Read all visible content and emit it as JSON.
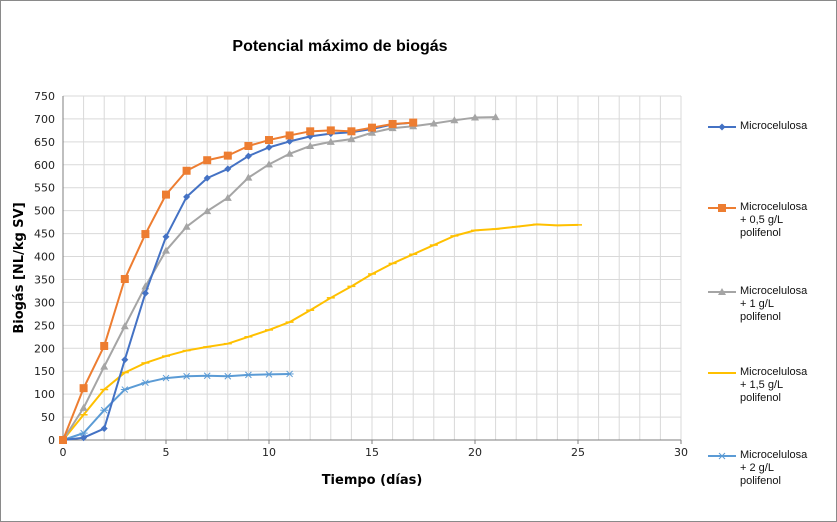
{
  "chart_data": {
    "type": "line",
    "title": "Potencial máximo de biogás",
    "xlabel": "Tiempo (días)",
    "ylabel": "Biogás [NL/kg SV]",
    "xlim": [
      0,
      30
    ],
    "ylim": [
      0,
      750
    ],
    "x_ticks": [
      0,
      5,
      10,
      15,
      20,
      25,
      30
    ],
    "y_ticks": [
      0,
      50,
      100,
      150,
      200,
      250,
      300,
      350,
      400,
      450,
      500,
      550,
      600,
      650,
      700,
      750
    ],
    "grid": true,
    "legend_position": "right",
    "series": [
      {
        "name": "Microcelulosa",
        "color": "#4472C4",
        "marker": "diamond",
        "x": [
          0,
          1,
          2,
          3,
          4,
          5,
          6,
          7,
          8,
          9,
          10,
          11,
          12,
          13,
          14,
          15,
          16,
          17
        ],
        "values": [
          0,
          5,
          25,
          175,
          320,
          443,
          530,
          571,
          591,
          619,
          638,
          651,
          662,
          668,
          671,
          678,
          688,
          692
        ]
      },
      {
        "name": "Microcelulosa + 0,5 g/L polifenol",
        "color": "#ED7D31",
        "marker": "square",
        "x": [
          0,
          1,
          2,
          3,
          4,
          5,
          6,
          7,
          8,
          9,
          10,
          11,
          12,
          13,
          14,
          15,
          16,
          17
        ],
        "values": [
          0,
          113,
          205,
          351,
          449,
          535,
          587,
          610,
          620,
          641,
          654,
          664,
          673,
          675,
          673,
          681,
          689,
          692
        ]
      },
      {
        "name": "Microcelulosa + 1 g/L polifenol",
        "color": "#A5A5A5",
        "marker": "triangle",
        "x": [
          0,
          1,
          2,
          3,
          4,
          5,
          6,
          7,
          8,
          9,
          10,
          11,
          12,
          13,
          14,
          15,
          16,
          17,
          18,
          19,
          20,
          21
        ],
        "values": [
          0,
          70,
          160,
          248,
          335,
          413,
          465,
          499,
          528,
          572,
          601,
          624,
          641,
          650,
          656,
          670,
          680,
          684,
          690,
          697,
          703,
          704
        ]
      },
      {
        "name": "Microcelulosa + 1,5 g/L polifenol",
        "color": "#FFC000",
        "marker": "dash",
        "x": [
          0,
          1,
          2,
          3,
          4,
          5,
          6,
          7,
          8,
          9,
          10,
          11,
          12,
          13,
          14,
          15,
          16,
          17,
          18,
          19,
          20,
          21,
          22,
          23,
          24,
          25
        ],
        "values": [
          0,
          55,
          110,
          147,
          168,
          183,
          195,
          203,
          210,
          225,
          240,
          257,
          283,
          310,
          335,
          362,
          385,
          405,
          425,
          445,
          457,
          460,
          465,
          470,
          468,
          469
        ]
      },
      {
        "name": "Microcelulosa + 2 g/L polifenol",
        "color": "#5B9BD5",
        "marker": "star",
        "x": [
          0,
          1,
          2,
          3,
          4,
          5,
          6,
          7,
          8,
          9,
          10,
          11
        ],
        "values": [
          0,
          15,
          65,
          110,
          125,
          135,
          139,
          140,
          139,
          142,
          143,
          144
        ]
      }
    ]
  },
  "legend": {
    "items": [
      {
        "label": "Microcelulosa"
      },
      {
        "label": "Microcelulosa\n+ 0,5 g/L\npolifenol"
      },
      {
        "label": "Microcelulosa\n+ 1 g/L\npolifenol"
      },
      {
        "label": "Microcelulosa\n+ 1,5 g/L\npolifenol"
      },
      {
        "label": "Microcelulosa\n+ 2 g/L\npolifenol"
      }
    ]
  }
}
